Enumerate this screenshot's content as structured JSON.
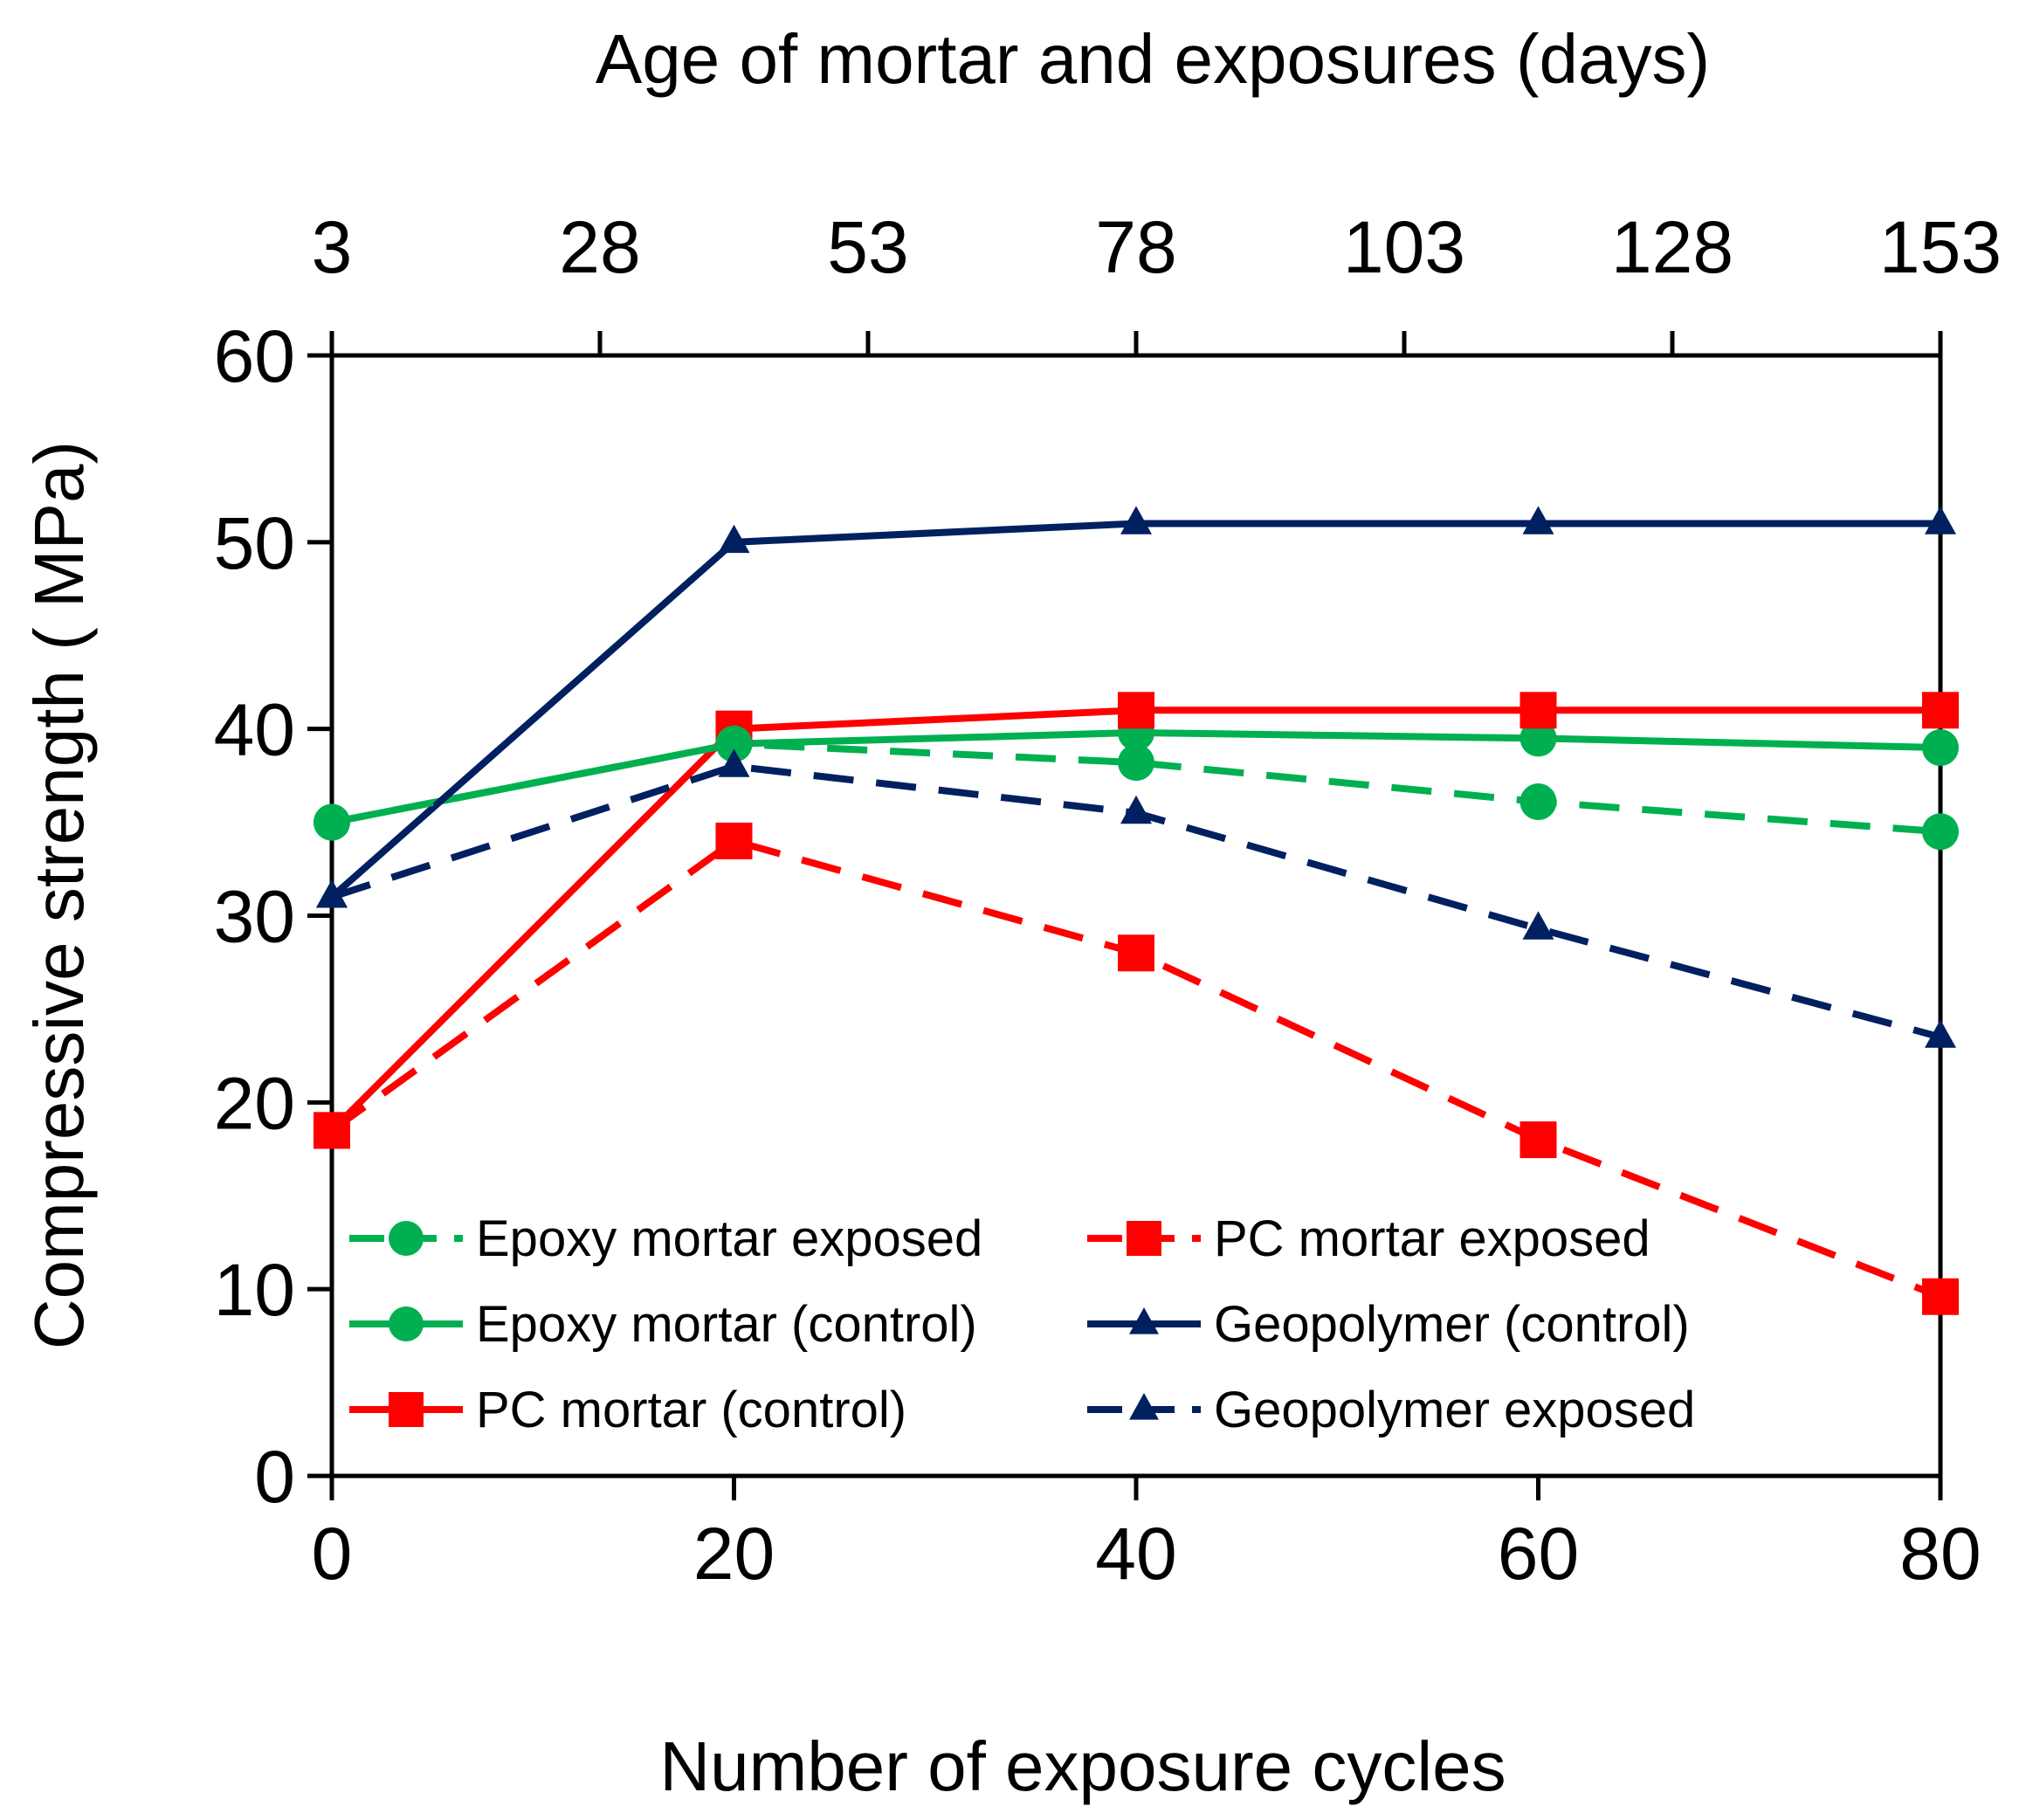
{
  "chart_data": {
    "type": "line",
    "title": "",
    "xlabel": "Number of exposure cycles",
    "ylabel": "Compressive strength ( MPa)",
    "x2label": "Age of mortar and exposures (days)",
    "xlim": [
      0,
      80
    ],
    "ylim": [
      0,
      60
    ],
    "x2lim": [
      3,
      153
    ],
    "xticks": [
      0,
      20,
      40,
      60,
      80
    ],
    "yticks": [
      0,
      10,
      20,
      30,
      40,
      50,
      60
    ],
    "x2ticks": [
      3,
      28,
      53,
      78,
      103,
      128,
      153
    ],
    "grid": false,
    "legend_position": "bottom-center",
    "series": [
      {
        "name": "Epoxy mortar exposed",
        "x": [
          0,
          20,
          40,
          60,
          80
        ],
        "y": [
          35,
          39.2,
          38.2,
          36.1,
          34.5
        ],
        "color": "#00b050",
        "dash": "dashed",
        "marker": "circle"
      },
      {
        "name": "PC mortar exposed",
        "x": [
          0,
          20,
          40,
          60,
          80
        ],
        "y": [
          18.5,
          34,
          28,
          18,
          9.6
        ],
        "color": "#ff0000",
        "dash": "dashed",
        "marker": "square"
      },
      {
        "name": "Epoxy mortar (control)",
        "x": [
          0,
          20,
          40,
          60,
          80
        ],
        "y": [
          35,
          39.2,
          39.8,
          39.5,
          39
        ],
        "color": "#00b050",
        "dash": "solid",
        "marker": "circle"
      },
      {
        "name": "Geopolymer (control)",
        "x": [
          0,
          20,
          40,
          60,
          80
        ],
        "y": [
          31,
          50,
          51,
          51,
          51
        ],
        "color": "#002060",
        "dash": "solid",
        "marker": "triangle"
      },
      {
        "name": "PC mortar (control)",
        "x": [
          0,
          20,
          40,
          60,
          80
        ],
        "y": [
          18.5,
          40,
          41,
          41,
          41
        ],
        "color": "#ff0000",
        "dash": "solid",
        "marker": "square"
      },
      {
        "name": "Geopolymer exposed",
        "x": [
          0,
          20,
          40,
          60,
          80
        ],
        "y": [
          31,
          38,
          35.5,
          29.3,
          23.5
        ],
        "color": "#002060",
        "dash": "dashed",
        "marker": "triangle"
      }
    ]
  }
}
